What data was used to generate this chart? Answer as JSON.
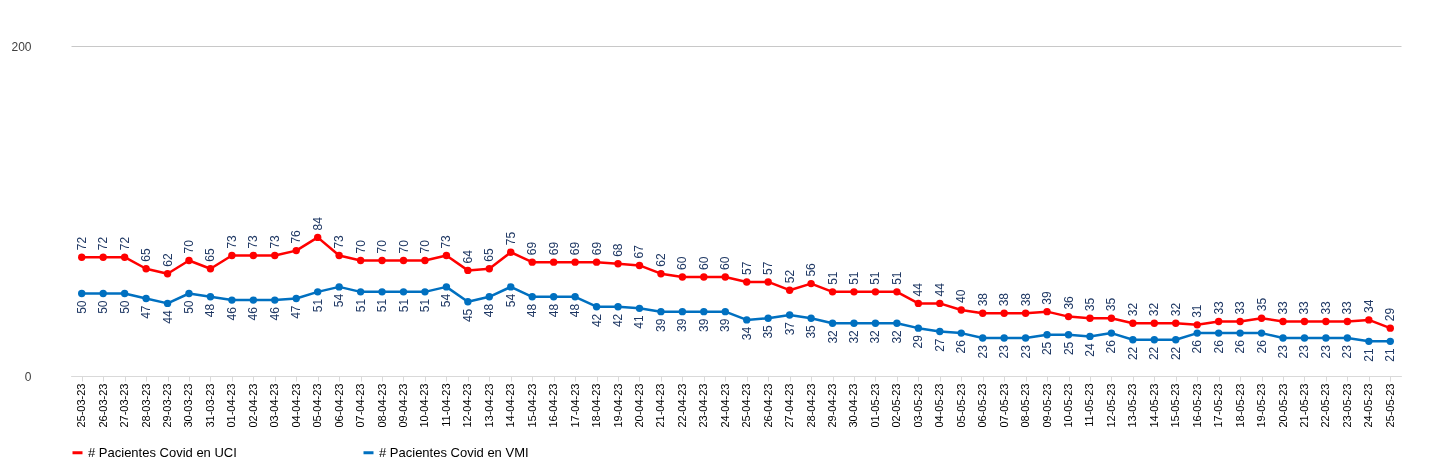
{
  "chart_data": {
    "type": "line",
    "categories": [
      "25-03-23",
      "26-03-23",
      "27-03-23",
      "28-03-23",
      "29-03-23",
      "30-03-23",
      "31-03-23",
      "01-04-23",
      "02-04-23",
      "03-04-23",
      "04-04-23",
      "05-04-23",
      "06-04-23",
      "07-04-23",
      "08-04-23",
      "09-04-23",
      "10-04-23",
      "11-04-23",
      "12-04-23",
      "13-04-23",
      "14-04-23",
      "15-04-23",
      "16-04-23",
      "17-04-23",
      "18-04-23",
      "19-04-23",
      "20-04-23",
      "21-04-23",
      "22-04-23",
      "23-04-23",
      "24-04-23",
      "25-04-23",
      "26-04-23",
      "27-04-23",
      "28-04-23",
      "29-04-23",
      "30-04-23",
      "01-05-23",
      "02-05-23",
      "03-05-23",
      "04-05-23",
      "05-05-23",
      "06-05-23",
      "07-05-23",
      "08-05-23",
      "09-05-23",
      "10-05-23",
      "11-05-23",
      "12-05-23",
      "13-05-23",
      "14-05-23",
      "15-05-23",
      "16-05-23",
      "17-05-23",
      "18-05-23",
      "19-05-23",
      "20-05-23",
      "21-05-23",
      "22-05-23",
      "23-05-23",
      "24-05-23",
      "25-05-23"
    ],
    "series": [
      {
        "name": "# Pacientes Covid en UCI",
        "color": "#ff0000",
        "values": [
          72,
          72,
          72,
          65,
          62,
          70,
          65,
          73,
          73,
          73,
          76,
          84,
          73,
          70,
          70,
          70,
          70,
          73,
          64,
          65,
          75,
          69,
          69,
          69,
          69,
          68,
          67,
          62,
          60,
          60,
          60,
          57,
          57,
          52,
          56,
          51,
          51,
          51,
          51,
          44,
          44,
          40,
          38,
          38,
          38,
          39,
          36,
          35,
          35,
          32,
          32,
          32,
          31,
          33,
          33,
          35,
          33,
          33,
          33,
          33,
          34,
          29
        ]
      },
      {
        "name": "# Pacientes Covid en VMI",
        "color": "#0070c0",
        "values": [
          50,
          50,
          50,
          47,
          44,
          50,
          48,
          46,
          46,
          46,
          47,
          51,
          54,
          51,
          51,
          51,
          51,
          54,
          45,
          48,
          54,
          48,
          48,
          48,
          42,
          42,
          41,
          39,
          39,
          39,
          39,
          34,
          35,
          37,
          35,
          32,
          32,
          32,
          32,
          29,
          27,
          26,
          23,
          23,
          23,
          25,
          25,
          24,
          26,
          22,
          22,
          22,
          26,
          26,
          26,
          26,
          23,
          23,
          23,
          23,
          21,
          21
        ]
      }
    ],
    "ylim": [
      0,
      200
    ],
    "yticks": [
      0,
      200
    ],
    "grid": "y",
    "legend": "bottom",
    "marker": "circle",
    "line_style": "solid",
    "data_labels": true
  }
}
